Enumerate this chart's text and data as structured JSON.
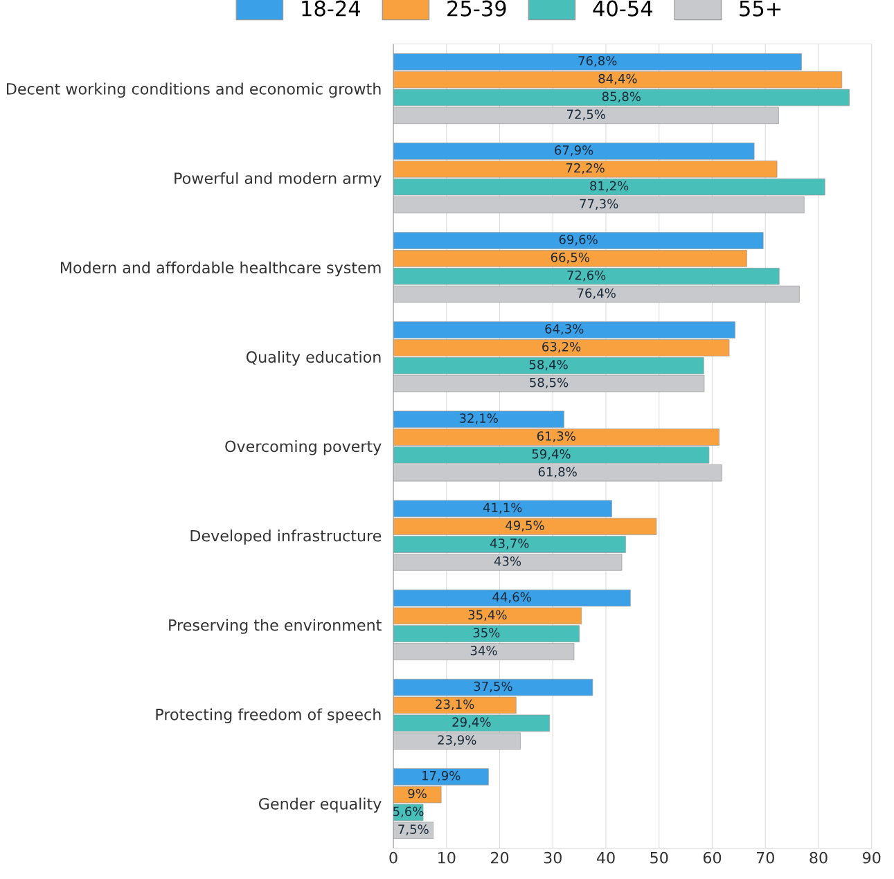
{
  "chart_data": {
    "type": "bar",
    "orientation": "horizontal",
    "categories": [
      "Decent working conditions and economic growth",
      "Powerful and modern army",
      "Modern and affordable healthcare system",
      "Quality education",
      "Overcoming poverty",
      "Developed infrastructure",
      "Preserving the environment",
      "Protecting freedom of speech",
      "Gender equality"
    ],
    "series": [
      {
        "name": "18-24",
        "color": "#3aa1e8",
        "values": [
          76.8,
          67.9,
          69.6,
          64.3,
          32.1,
          41.1,
          44.6,
          37.5,
          17.9
        ],
        "value_labels": [
          "76,8%",
          "67,9%",
          "69,6%",
          "64,3%",
          "32,1%",
          "41,1%",
          "44,6%",
          "37,5%",
          "17,9%"
        ]
      },
      {
        "name": "25-39",
        "color": "#f9a03f",
        "values": [
          84.4,
          72.2,
          66.5,
          63.2,
          61.3,
          49.5,
          35.4,
          23.1,
          9
        ],
        "value_labels": [
          "84,4%",
          "72,2%",
          "66,5%",
          "63,2%",
          "61,3%",
          "49,5%",
          "35,4%",
          "23,1%",
          "9%"
        ]
      },
      {
        "name": "40-54",
        "color": "#48bfb8",
        "values": [
          85.8,
          81.2,
          72.6,
          58.4,
          59.4,
          43.7,
          35,
          29.4,
          5.6
        ],
        "value_labels": [
          "85,8%",
          "81,2%",
          "72,6%",
          "58,4%",
          "59,4%",
          "43,7%",
          "35%",
          "29,4%",
          "5,6%"
        ]
      },
      {
        "name": "55+",
        "color": "#c8c9cc",
        "values": [
          72.5,
          77.3,
          76.4,
          58.5,
          61.8,
          43,
          34,
          23.9,
          7.5
        ],
        "value_labels": [
          "72,5%",
          "77,3%",
          "76,4%",
          "58,5%",
          "61,8%",
          "43%",
          "34%",
          "23,9%",
          "7,5%"
        ]
      }
    ],
    "xlim": [
      0,
      90
    ],
    "xticks": [
      0,
      10,
      20,
      30,
      40,
      50,
      60,
      70,
      80,
      90
    ],
    "grid": "x",
    "legend": "top"
  }
}
